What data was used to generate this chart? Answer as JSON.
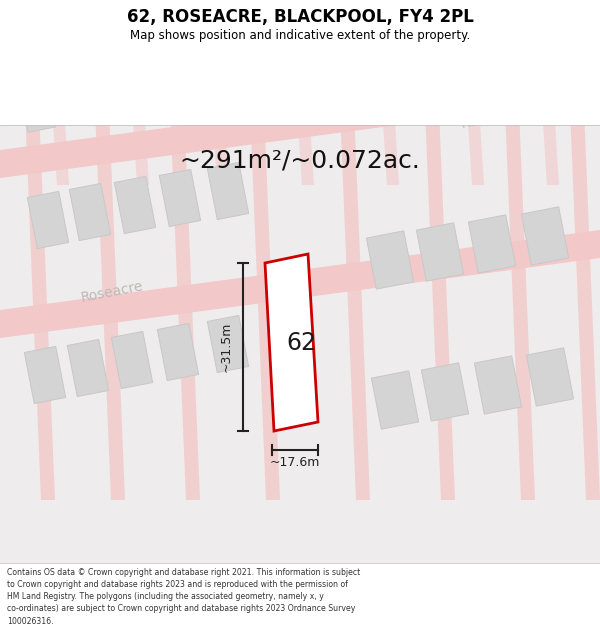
{
  "title": "62, ROSEACRE, BLACKPOOL, FY4 2PL",
  "subtitle": "Map shows position and indicative extent of the property.",
  "area_text": "~291m²/~0.072ac.",
  "dim_width": "~17.6m",
  "dim_height": "~31.5m",
  "property_label": "62",
  "footnote_lines": [
    "Contains OS data © Crown copyright and database right 2021. This information is subject",
    "to Crown copyright and database rights 2023 and is reproduced with the permission of",
    "HM Land Registry. The polygons (including the associated geometry, namely x, y",
    "co-ordinates) are subject to Crown copyright and database rights 2023 Ordnance Survey",
    "100026316."
  ],
  "bg_color": "#f7f7f7",
  "map_bg": "#eeecec",
  "road_color": "#f2c8c8",
  "building_fill": "#d4d4d4",
  "building_edge": "#c8c8c8",
  "property_fill": "#ffffff",
  "property_edge": "#cc0000",
  "dim_line_color": "#222222",
  "title_color": "#000000",
  "road_label_color": "#c0b8b8",
  "street_name": "Roseacre",
  "road_ang_deg": 11,
  "cross_ang_deg": 100
}
